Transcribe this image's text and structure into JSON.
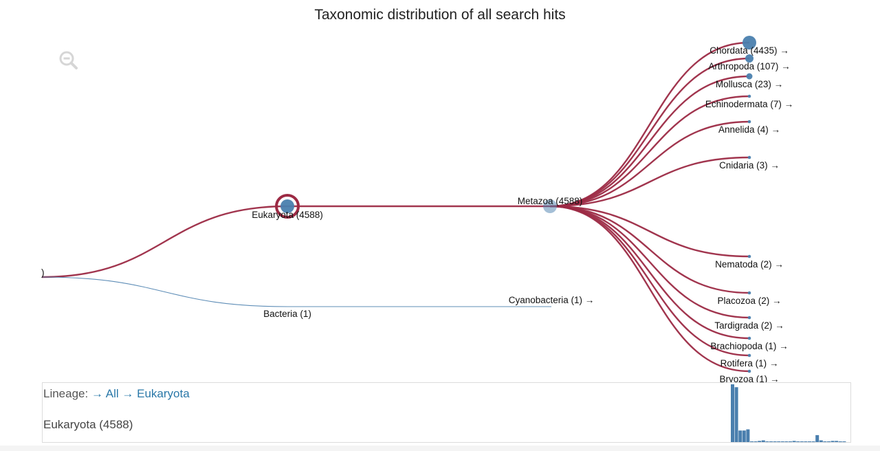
{
  "chart_data": {
    "type": "tree",
    "title": "Taxonomic distribution of all search hits",
    "root": {
      "label": ")",
      "count": null
    },
    "nodes": [
      {
        "id": "eukaryota",
        "label": "Eukaryota (4588)",
        "name": "Eukaryota",
        "count": 4588,
        "parent": "root",
        "selected": true
      },
      {
        "id": "bacteria",
        "label": "Bacteria (1)",
        "name": "Bacteria",
        "count": 1,
        "parent": "root"
      },
      {
        "id": "metazoa",
        "label": "Metazoa (4588)",
        "name": "Metazoa",
        "count": 4588,
        "parent": "eukaryota"
      },
      {
        "id": "cyanobacteria",
        "label": "Cyanobacteria (1) →",
        "name": "Cyanobacteria",
        "count": 1,
        "parent": "bacteria"
      },
      {
        "id": "chordata",
        "label": "Chordata (4435) →",
        "name": "Chordata",
        "count": 4435,
        "parent": "metazoa"
      },
      {
        "id": "arthropoda",
        "label": "Arthropoda (107) →",
        "name": "Arthropoda",
        "count": 107,
        "parent": "metazoa"
      },
      {
        "id": "mollusca",
        "label": "Mollusca (23) →",
        "name": "Mollusca",
        "count": 23,
        "parent": "metazoa"
      },
      {
        "id": "echinodermata",
        "label": "Echinodermata (7) →",
        "name": "Echinodermata",
        "count": 7,
        "parent": "metazoa"
      },
      {
        "id": "annelida",
        "label": "Annelida (4) →",
        "name": "Annelida",
        "count": 4,
        "parent": "metazoa"
      },
      {
        "id": "cnidaria",
        "label": "Cnidaria (3) →",
        "name": "Cnidaria",
        "count": 3,
        "parent": "metazoa"
      },
      {
        "id": "nematoda",
        "label": "Nematoda (2) →",
        "name": "Nematoda",
        "count": 2,
        "parent": "metazoa"
      },
      {
        "id": "placozoa",
        "label": "Placozoa (2) →",
        "name": "Placozoa",
        "count": 2,
        "parent": "metazoa"
      },
      {
        "id": "tardigrada",
        "label": "Tardigrada (2) →",
        "name": "Tardigrada",
        "count": 2,
        "parent": "metazoa"
      },
      {
        "id": "brachiopoda",
        "label": "Brachiopoda (1) →",
        "name": "Brachiopoda",
        "count": 1,
        "parent": "metazoa"
      },
      {
        "id": "rotifera",
        "label": "Rotifera (1) →",
        "name": "Rotifera",
        "count": 1,
        "parent": "metazoa"
      },
      {
        "id": "bryozoa",
        "label": "Bryozoa (1) →",
        "name": "Bryozoa",
        "count": 1,
        "parent": "metazoa"
      }
    ],
    "histogram": {
      "values": [
        100,
        95,
        20,
        20,
        22,
        1,
        1,
        2,
        3,
        1,
        1,
        1,
        1,
        1,
        1,
        1,
        2,
        1,
        1,
        1,
        1,
        1,
        12,
        3,
        1,
        1,
        2,
        2,
        1,
        1
      ]
    },
    "colors": {
      "highlight_link": "#9c2a44",
      "other_link": "#4a7fae",
      "node_fill": "#4a7fae",
      "histogram_bar": "#4a7fae"
    }
  },
  "info_panel": {
    "lineage_label": "Lineage:",
    "lineage": [
      "All",
      "Eukaryota"
    ],
    "selected_label": "Eukaryota (4588)"
  },
  "controls": {
    "zoom_out_icon": "zoom-out-magnifier-icon"
  }
}
